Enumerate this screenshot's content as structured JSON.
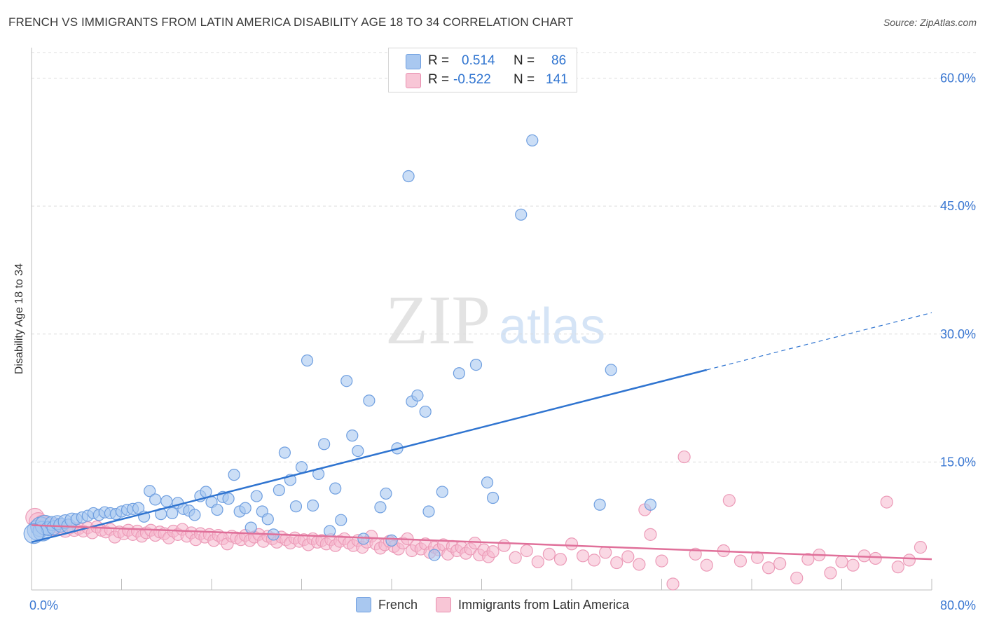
{
  "title": "FRENCH VS IMMIGRANTS FROM LATIN AMERICA DISABILITY AGE 18 TO 34 CORRELATION CHART",
  "source": "Source: ZipAtlas.com",
  "watermark": {
    "zip": "ZIP",
    "atlas": "atlas"
  },
  "stats_legend": {
    "r_label": "R =",
    "n_label": "N =",
    "french": {
      "r": "0.514",
      "n": "86"
    },
    "latin": {
      "r": "-0.522",
      "n": "141"
    }
  },
  "chart_data": {
    "type": "scatter",
    "title": "FRENCH VS IMMIGRANTS FROM LATIN AMERICA DISABILITY AGE 18 TO 34 CORRELATION CHART",
    "xlabel": "",
    "ylabel": "Disability Age 18 to 34",
    "xlim": [
      0,
      80
    ],
    "ylim": [
      0,
      63
    ],
    "x_tick_labels": [
      "0.0%",
      "80.0%"
    ],
    "y_ticks": [
      15,
      30,
      45,
      60
    ],
    "y_tick_labels": [
      "15.0%",
      "30.0%",
      "45.0%",
      "60.0%"
    ],
    "colors": {
      "french": "#2f74d0",
      "french_fill": "#a9c8f0",
      "latin": "#e0709a",
      "latin_fill": "#f6b8cd",
      "tick_text": "#3b78d2"
    },
    "series": [
      {
        "name": "French",
        "trend": {
          "x0": 0,
          "y0": 5.6,
          "x1": 60,
          "y1": 25.8,
          "dash_to_x": 80,
          "dash_to_y": 32.5
        },
        "points": [
          [
            0.5,
            7.0
          ],
          [
            0.8,
            7.4
          ],
          [
            1.0,
            6.9
          ],
          [
            1.2,
            7.6
          ],
          [
            1.5,
            7.2
          ],
          [
            1.8,
            7.8
          ],
          [
            2.0,
            7.3
          ],
          [
            2.3,
            7.9
          ],
          [
            2.6,
            7.6
          ],
          [
            3.0,
            8.0
          ],
          [
            3.3,
            7.5
          ],
          [
            3.6,
            8.2
          ],
          [
            4.0,
            8.3
          ],
          [
            4.5,
            8.5
          ],
          [
            5.0,
            8.7
          ],
          [
            5.5,
            9.0
          ],
          [
            6.0,
            8.8
          ],
          [
            6.5,
            9.1
          ],
          [
            7.0,
            9.0
          ],
          [
            7.5,
            8.9
          ],
          [
            8.0,
            9.2
          ],
          [
            8.5,
            9.4
          ],
          [
            9.0,
            9.5
          ],
          [
            9.5,
            9.6
          ],
          [
            10.0,
            8.6
          ],
          [
            10.5,
            11.6
          ],
          [
            11.0,
            10.6
          ],
          [
            11.5,
            8.9
          ],
          [
            12.0,
            10.4
          ],
          [
            12.5,
            9.0
          ],
          [
            13.0,
            10.2
          ],
          [
            13.5,
            9.5
          ],
          [
            14.0,
            9.3
          ],
          [
            14.5,
            8.8
          ],
          [
            15.0,
            11.0
          ],
          [
            15.5,
            11.5
          ],
          [
            16.0,
            10.3
          ],
          [
            16.5,
            9.4
          ],
          [
            17.0,
            10.9
          ],
          [
            17.5,
            10.7
          ],
          [
            18.0,
            13.5
          ],
          [
            18.5,
            9.2
          ],
          [
            19.0,
            9.6
          ],
          [
            19.5,
            7.3
          ],
          [
            20.0,
            11.0
          ],
          [
            20.5,
            9.2
          ],
          [
            21.0,
            8.3
          ],
          [
            21.5,
            6.5
          ],
          [
            22.0,
            11.7
          ],
          [
            22.5,
            16.1
          ],
          [
            23.0,
            12.9
          ],
          [
            23.5,
            9.8
          ],
          [
            24.0,
            14.4
          ],
          [
            24.5,
            26.9
          ],
          [
            25.0,
            9.9
          ],
          [
            25.5,
            13.6
          ],
          [
            26.0,
            17.1
          ],
          [
            26.5,
            6.9
          ],
          [
            27.0,
            11.9
          ],
          [
            27.5,
            8.2
          ],
          [
            28.0,
            24.5
          ],
          [
            28.5,
            18.1
          ],
          [
            29.0,
            16.3
          ],
          [
            29.5,
            6.0
          ],
          [
            30.0,
            22.2
          ],
          [
            31.0,
            9.7
          ],
          [
            31.5,
            11.3
          ],
          [
            32.0,
            5.8
          ],
          [
            32.5,
            16.6
          ],
          [
            33.5,
            48.5
          ],
          [
            33.8,
            22.1
          ],
          [
            34.3,
            22.8
          ],
          [
            35.0,
            20.9
          ],
          [
            35.3,
            9.2
          ],
          [
            35.8,
            4.1
          ],
          [
            36.5,
            11.5
          ],
          [
            38.0,
            25.4
          ],
          [
            39.5,
            26.4
          ],
          [
            40.5,
            12.6
          ],
          [
            41.0,
            10.8
          ],
          [
            43.5,
            44.0
          ],
          [
            44.5,
            52.7
          ],
          [
            50.5,
            10.0
          ],
          [
            51.5,
            25.8
          ],
          [
            55.0,
            10.0
          ],
          [
            0.2,
            6.6
          ]
        ]
      },
      {
        "name": "Immigrants from Latin America",
        "trend": {
          "x0": 0,
          "y0": 7.6,
          "x1": 80,
          "y1": 3.6
        },
        "points": [
          [
            0.3,
            8.5
          ],
          [
            0.6,
            8.0
          ],
          [
            1.0,
            7.7
          ],
          [
            1.4,
            7.5
          ],
          [
            1.8,
            7.2
          ],
          [
            2.2,
            7.6
          ],
          [
            2.6,
            7.3
          ],
          [
            3.0,
            7.0
          ],
          [
            3.4,
            7.4
          ],
          [
            3.8,
            7.1
          ],
          [
            4.2,
            7.2
          ],
          [
            4.6,
            6.9
          ],
          [
            5.0,
            7.3
          ],
          [
            5.4,
            6.7
          ],
          [
            5.8,
            7.4
          ],
          [
            6.2,
            7.0
          ],
          [
            6.6,
            6.8
          ],
          [
            7.0,
            7.1
          ],
          [
            7.4,
            6.2
          ],
          [
            7.8,
            6.8
          ],
          [
            8.2,
            6.6
          ],
          [
            8.6,
            7.0
          ],
          [
            9.0,
            6.5
          ],
          [
            9.4,
            6.9
          ],
          [
            9.8,
            6.3
          ],
          [
            10.2,
            6.7
          ],
          [
            10.6,
            7.0
          ],
          [
            11.0,
            6.4
          ],
          [
            11.4,
            6.8
          ],
          [
            11.8,
            6.6
          ],
          [
            12.2,
            6.1
          ],
          [
            12.6,
            6.9
          ],
          [
            13.0,
            6.5
          ],
          [
            13.4,
            7.1
          ],
          [
            13.8,
            6.3
          ],
          [
            14.2,
            6.7
          ],
          [
            14.6,
            5.9
          ],
          [
            15.0,
            6.6
          ],
          [
            15.4,
            6.2
          ],
          [
            15.8,
            6.5
          ],
          [
            16.2,
            5.8
          ],
          [
            16.6,
            6.4
          ],
          [
            17.0,
            6.0
          ],
          [
            17.4,
            5.4
          ],
          [
            17.8,
            6.3
          ],
          [
            18.2,
            6.1
          ],
          [
            18.6,
            5.9
          ],
          [
            19.0,
            6.4
          ],
          [
            19.4,
            5.8
          ],
          [
            19.8,
            6.2
          ],
          [
            20.2,
            6.5
          ],
          [
            20.6,
            5.7
          ],
          [
            21.0,
            6.3
          ],
          [
            21.4,
            6.0
          ],
          [
            21.8,
            5.6
          ],
          [
            22.2,
            6.2
          ],
          [
            22.6,
            5.9
          ],
          [
            23.0,
            5.5
          ],
          [
            23.4,
            6.1
          ],
          [
            23.8,
            5.7
          ],
          [
            24.2,
            5.9
          ],
          [
            24.6,
            5.3
          ],
          [
            25.0,
            6.0
          ],
          [
            25.4,
            5.6
          ],
          [
            25.8,
            5.8
          ],
          [
            26.2,
            5.4
          ],
          [
            26.6,
            5.9
          ],
          [
            27.0,
            5.2
          ],
          [
            27.4,
            5.7
          ],
          [
            27.8,
            6.0
          ],
          [
            28.2,
            5.5
          ],
          [
            28.6,
            5.2
          ],
          [
            29.0,
            5.8
          ],
          [
            29.4,
            5.0
          ],
          [
            29.8,
            5.6
          ],
          [
            30.2,
            6.3
          ],
          [
            30.6,
            5.4
          ],
          [
            31.0,
            4.9
          ],
          [
            31.4,
            5.3
          ],
          [
            31.8,
            5.7
          ],
          [
            32.2,
            5.1
          ],
          [
            32.6,
            4.8
          ],
          [
            33.0,
            5.5
          ],
          [
            33.4,
            6.0
          ],
          [
            33.8,
            4.6
          ],
          [
            34.2,
            5.2
          ],
          [
            34.6,
            4.8
          ],
          [
            35.0,
            5.4
          ],
          [
            35.4,
            4.4
          ],
          [
            35.8,
            5.0
          ],
          [
            36.2,
            4.7
          ],
          [
            36.6,
            5.3
          ],
          [
            37.0,
            4.2
          ],
          [
            37.4,
            5.1
          ],
          [
            37.8,
            4.6
          ],
          [
            38.2,
            5.0
          ],
          [
            38.6,
            4.3
          ],
          [
            39.0,
            4.8
          ],
          [
            39.4,
            5.5
          ],
          [
            39.8,
            4.1
          ],
          [
            40.2,
            4.7
          ],
          [
            40.6,
            3.9
          ],
          [
            41.0,
            4.5
          ],
          [
            42.0,
            5.2
          ],
          [
            43.0,
            3.8
          ],
          [
            44.0,
            4.6
          ],
          [
            45.0,
            3.3
          ],
          [
            46.0,
            4.2
          ],
          [
            47.0,
            3.6
          ],
          [
            48.0,
            5.4
          ],
          [
            49.0,
            4.0
          ],
          [
            50.0,
            3.5
          ],
          [
            51.0,
            4.4
          ],
          [
            52.0,
            3.2
          ],
          [
            53.0,
            3.9
          ],
          [
            54.0,
            3.0
          ],
          [
            55.0,
            6.5
          ],
          [
            56.0,
            3.4
          ],
          [
            57.0,
            0.7
          ],
          [
            58.0,
            15.6
          ],
          [
            59.0,
            4.2
          ],
          [
            60.0,
            2.9
          ],
          [
            61.5,
            4.6
          ],
          [
            62.0,
            10.5
          ],
          [
            63.0,
            3.4
          ],
          [
            64.5,
            3.8
          ],
          [
            65.5,
            2.6
          ],
          [
            66.5,
            3.1
          ],
          [
            68.0,
            1.4
          ],
          [
            69.0,
            3.6
          ],
          [
            70.0,
            4.1
          ],
          [
            71.0,
            2.0
          ],
          [
            72.0,
            3.3
          ],
          [
            73.0,
            2.9
          ],
          [
            74.0,
            4.0
          ],
          [
            75.0,
            3.7
          ],
          [
            76.0,
            10.3
          ],
          [
            77.0,
            2.7
          ],
          [
            78.0,
            3.5
          ],
          [
            79.0,
            5.0
          ],
          [
            54.5,
            9.4
          ]
        ]
      }
    ]
  },
  "bottom_legend": {
    "french_label": "French",
    "latin_label": "Immigrants from Latin America"
  }
}
